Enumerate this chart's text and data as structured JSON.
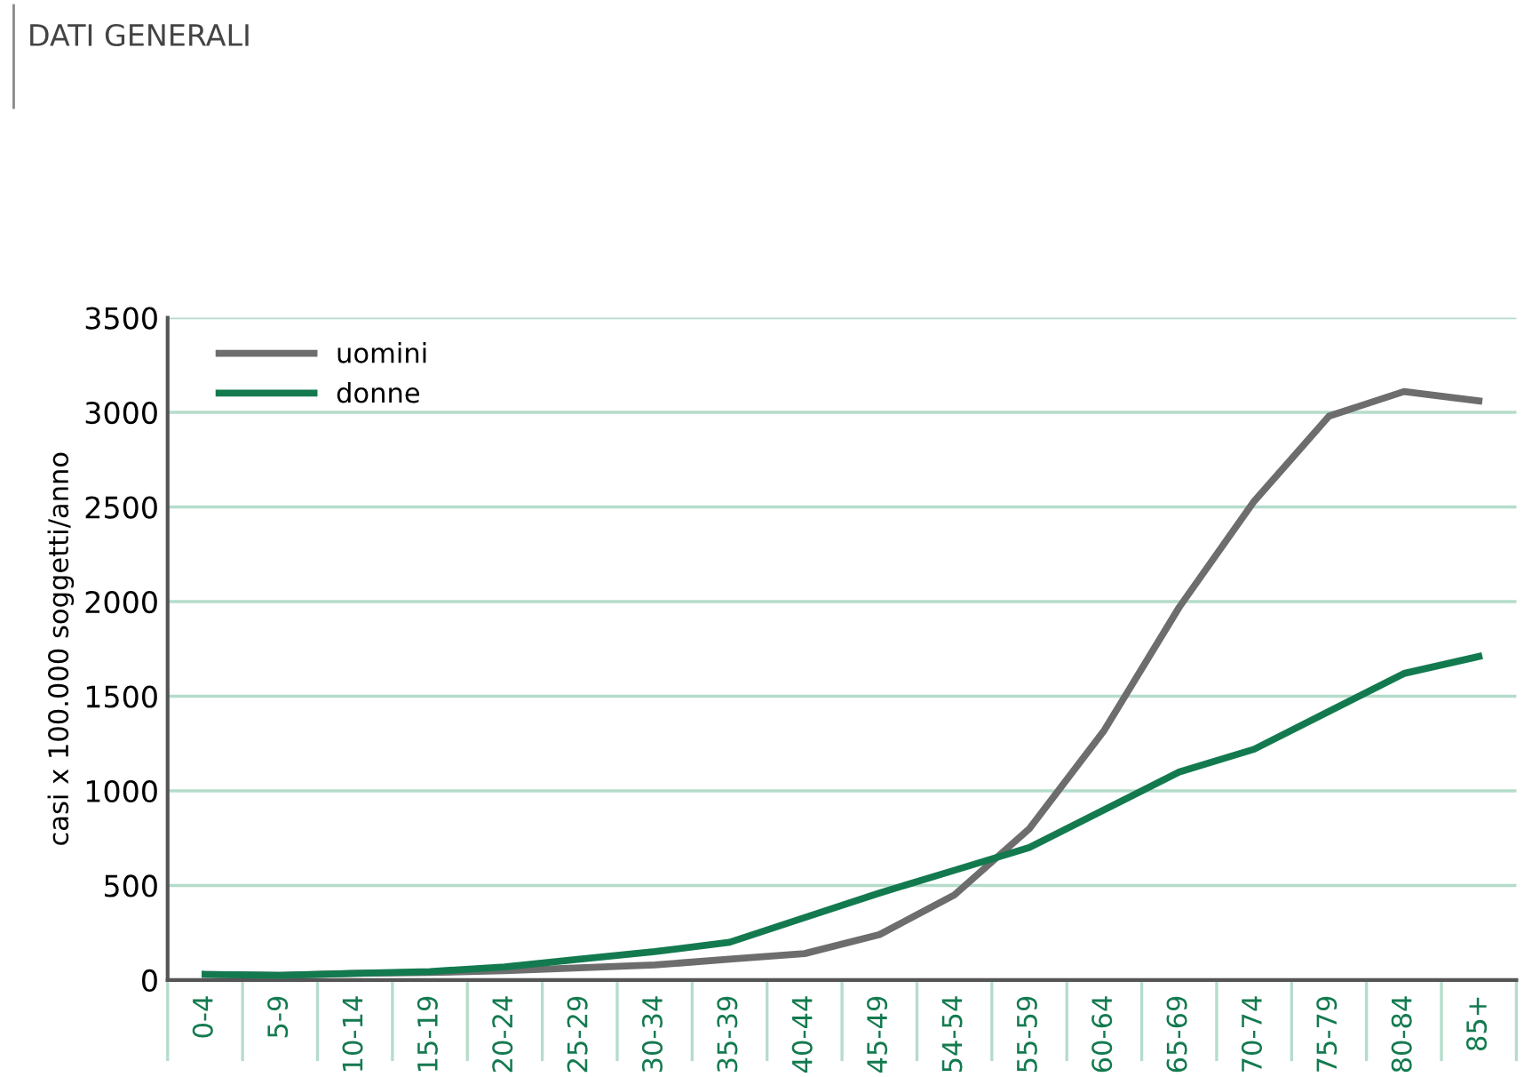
{
  "chart_data": {
    "type": "line",
    "ylabel": "casi x 100.000 soggetti/anno",
    "annotations": [
      "DATI GENERALI"
    ],
    "categories": [
      "0-4",
      "5-9",
      "10-14",
      "15-19",
      "20-24",
      "25-29",
      "30-34",
      "35-39",
      "40-44",
      "45-49",
      "54-54",
      "55-59",
      "60-64",
      "65-69",
      "70-74",
      "75-79",
      "80-84",
      "85+"
    ],
    "series": [
      {
        "name": "uomini",
        "color": "#6d6d6d",
        "values": [
          30,
          25,
          35,
          40,
          50,
          65,
          80,
          110,
          140,
          240,
          450,
          800,
          1320,
          1970,
          2530,
          2980,
          3110,
          3060
        ]
      },
      {
        "name": "donne",
        "color": "#137a4f",
        "values": [
          30,
          25,
          35,
          45,
          70,
          110,
          150,
          200,
          330,
          460,
          580,
          700,
          900,
          1100,
          1220,
          1420,
          1620,
          1710
        ]
      }
    ],
    "ylim": [
      0,
      3500
    ],
    "yticks": [
      0,
      500,
      1000,
      1500,
      2000,
      2500,
      3000,
      3500
    ],
    "grid": "y",
    "legend": "top left",
    "marker": "none",
    "line_style": "solid"
  }
}
